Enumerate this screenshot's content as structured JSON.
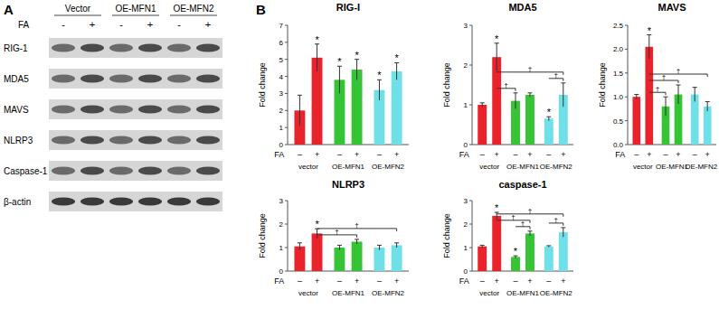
{
  "panel_labels": [
    "A",
    "B"
  ],
  "blot": {
    "groups": [
      "Vector",
      "OE-MFN1",
      "OE-MFN2"
    ],
    "fa_label": "FA",
    "fa": [
      "-",
      "+",
      "-",
      "+",
      "-",
      "+"
    ],
    "rows": [
      "RIG-1",
      "MDA5",
      "MAVS",
      "NLRP3",
      "Caspase-1",
      "β-actin"
    ]
  },
  "chart_data": [
    {
      "type": "bar",
      "title": "RIG-I",
      "y_label": "Fold change",
      "x_label": "FA",
      "categories": [
        "–",
        "+",
        "–",
        "+",
        "–",
        "+"
      ],
      "groups": [
        "vector",
        "OE-MFN1",
        "OE-MFN2"
      ],
      "values": [
        2.0,
        5.1,
        3.8,
        4.4,
        3.2,
        4.3
      ],
      "errors": [
        0.9,
        0.8,
        0.8,
        0.6,
        0.6,
        0.5
      ],
      "colors": [
        "#e8232c",
        "#e8232c",
        "#35c435",
        "#35c435",
        "#6fe0e8",
        "#6fe0e8"
      ],
      "significance": [
        null,
        "*",
        "*",
        "*",
        "*",
        "*"
      ],
      "comparisons": [],
      "ylim": [
        0,
        7
      ],
      "yticks": [
        0,
        1,
        2,
        3,
        4,
        5,
        6,
        7
      ]
    },
    {
      "type": "bar",
      "title": "MDA5",
      "y_label": "Fold change",
      "x_label": "FA",
      "categories": [
        "–",
        "+",
        "–",
        "+",
        "–",
        "+"
      ],
      "groups": [
        "vector",
        "OE-MFN1",
        "OE-MFN2"
      ],
      "values": [
        1.0,
        2.2,
        1.1,
        1.25,
        0.65,
        1.25
      ],
      "errors": [
        0.05,
        0.35,
        0.2,
        0.05,
        0.05,
        0.3
      ],
      "colors": [
        "#e8232c",
        "#e8232c",
        "#35c435",
        "#35c435",
        "#6fe0e8",
        "#6fe0e8"
      ],
      "significance": [
        null,
        "*",
        null,
        null,
        "*",
        null
      ],
      "comparisons": [
        {
          "bars": [
            4,
            5
          ],
          "label": "†"
        },
        {
          "bars": [
            1,
            2
          ],
          "label": "†"
        },
        {
          "bars": [
            1,
            5
          ],
          "label": "†"
        }
      ],
      "ylim": [
        0,
        3
      ],
      "yticks": [
        0,
        1,
        2,
        3
      ]
    },
    {
      "type": "bar",
      "title": "MAVS",
      "y_label": "Fold change",
      "x_label": "FA",
      "categories": [
        "–",
        "+",
        "–",
        "+",
        "–",
        "+"
      ],
      "groups": [
        "vector",
        "OE-MFN1",
        "OE-MFN2"
      ],
      "values": [
        1.0,
        2.05,
        0.8,
        1.05,
        1.05,
        0.8
      ],
      "errors": [
        0.05,
        0.25,
        0.2,
        0.2,
        0.15,
        0.1
      ],
      "colors": [
        "#e8232c",
        "#e8232c",
        "#35c435",
        "#35c435",
        "#6fe0e8",
        "#6fe0e8"
      ],
      "significance": [
        null,
        "*",
        null,
        null,
        null,
        null
      ],
      "comparisons": [
        {
          "bars": [
            1,
            2
          ],
          "label": "†"
        },
        {
          "bars": [
            1,
            3
          ],
          "label": "†"
        },
        {
          "bars": [
            1,
            5
          ],
          "label": "†"
        }
      ],
      "ylim": [
        0,
        2.5
      ],
      "yticks": [
        {
          "value": 0,
          "label": "0.0"
        },
        0.5,
        {
          "value": 1,
          "label": "1.0"
        },
        1.5,
        {
          "value": 2,
          "label": "2.0"
        },
        2.5
      ]
    },
    {
      "type": "bar",
      "title": "NLRP3",
      "y_label": "Fold change",
      "x_label": "FA",
      "categories": [
        "–",
        "+",
        "–",
        "+",
        "–",
        "+"
      ],
      "groups": [
        "vector",
        "OE-MFN1",
        "OE-MFN2"
      ],
      "values": [
        1.05,
        1.6,
        1.0,
        1.25,
        1.0,
        1.1
      ],
      "errors": [
        0.15,
        0.2,
        0.1,
        0.1,
        0.1,
        0.1
      ],
      "colors": [
        "#e8232c",
        "#e8232c",
        "#35c435",
        "#35c435",
        "#6fe0e8",
        "#6fe0e8"
      ],
      "significance": [
        null,
        "*",
        null,
        null,
        null,
        null
      ],
      "comparisons": [
        {
          "bars": [
            1,
            3
          ],
          "label": "†"
        },
        {
          "bars": [
            1,
            5
          ],
          "label": "†"
        }
      ],
      "ylim": [
        0,
        3
      ],
      "yticks": [
        0,
        1,
        2,
        3
      ]
    },
    {
      "type": "bar",
      "title": "caspase-1",
      "y_label": "Fold change",
      "x_label": "FA",
      "categories": [
        "–",
        "+",
        "–",
        "+",
        "–",
        "+"
      ],
      "groups": [
        "vector",
        "OE-MFN1",
        "OE-MFN2"
      ],
      "values": [
        1.05,
        2.35,
        0.6,
        1.6,
        1.05,
        1.65
      ],
      "errors": [
        0.05,
        0.15,
        0.05,
        0.1,
        0.03,
        0.2
      ],
      "colors": [
        "#e8232c",
        "#e8232c",
        "#35c435",
        "#35c435",
        "#6fe0e8",
        "#6fe0e8"
      ],
      "significance": [
        null,
        "*",
        "*",
        null,
        null,
        null
      ],
      "comparisons": [
        {
          "bars": [
            2,
            3
          ],
          "label": "†"
        },
        {
          "bars": [
            4,
            5
          ],
          "label": "†"
        },
        {
          "bars": [
            1,
            3
          ],
          "label": "†"
        },
        {
          "bars": [
            1,
            5
          ],
          "label": "†"
        }
      ],
      "ylim": [
        0,
        3
      ],
      "yticks": [
        0,
        1,
        2,
        3
      ]
    }
  ]
}
